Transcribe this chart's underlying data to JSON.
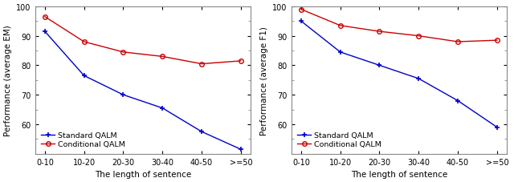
{
  "categories": [
    "0-10",
    "10-20",
    "20-30",
    "30-40",
    "40-50",
    ">=50"
  ],
  "left": {
    "ylabel": "Performance (average EM)",
    "standard": [
      91.5,
      76.5,
      70.0,
      65.5,
      57.5,
      51.5
    ],
    "conditional": [
      96.5,
      88.0,
      84.5,
      83.0,
      80.5,
      81.5
    ],
    "ylim": [
      50,
      100
    ],
    "yticks": [
      60,
      70,
      80,
      90,
      100
    ]
  },
  "right": {
    "ylabel": "Performance (average F1)",
    "standard": [
      95.0,
      84.5,
      80.0,
      75.5,
      68.0,
      59.0
    ],
    "conditional": [
      99.0,
      93.5,
      91.5,
      90.0,
      88.0,
      88.5
    ],
    "ylim": [
      50,
      100
    ],
    "yticks": [
      60,
      70,
      80,
      90,
      100
    ]
  },
  "xlabel": "The length of sentence",
  "legend_labels": [
    "Standard QALM",
    "Conditional QALM"
  ],
  "standard_color": "#0000cc",
  "conditional_color": "#cc0000",
  "spine_color": "#888888",
  "tick_label_fontsize": 7,
  "axis_label_fontsize": 7.5,
  "legend_fontsize": 6.8
}
